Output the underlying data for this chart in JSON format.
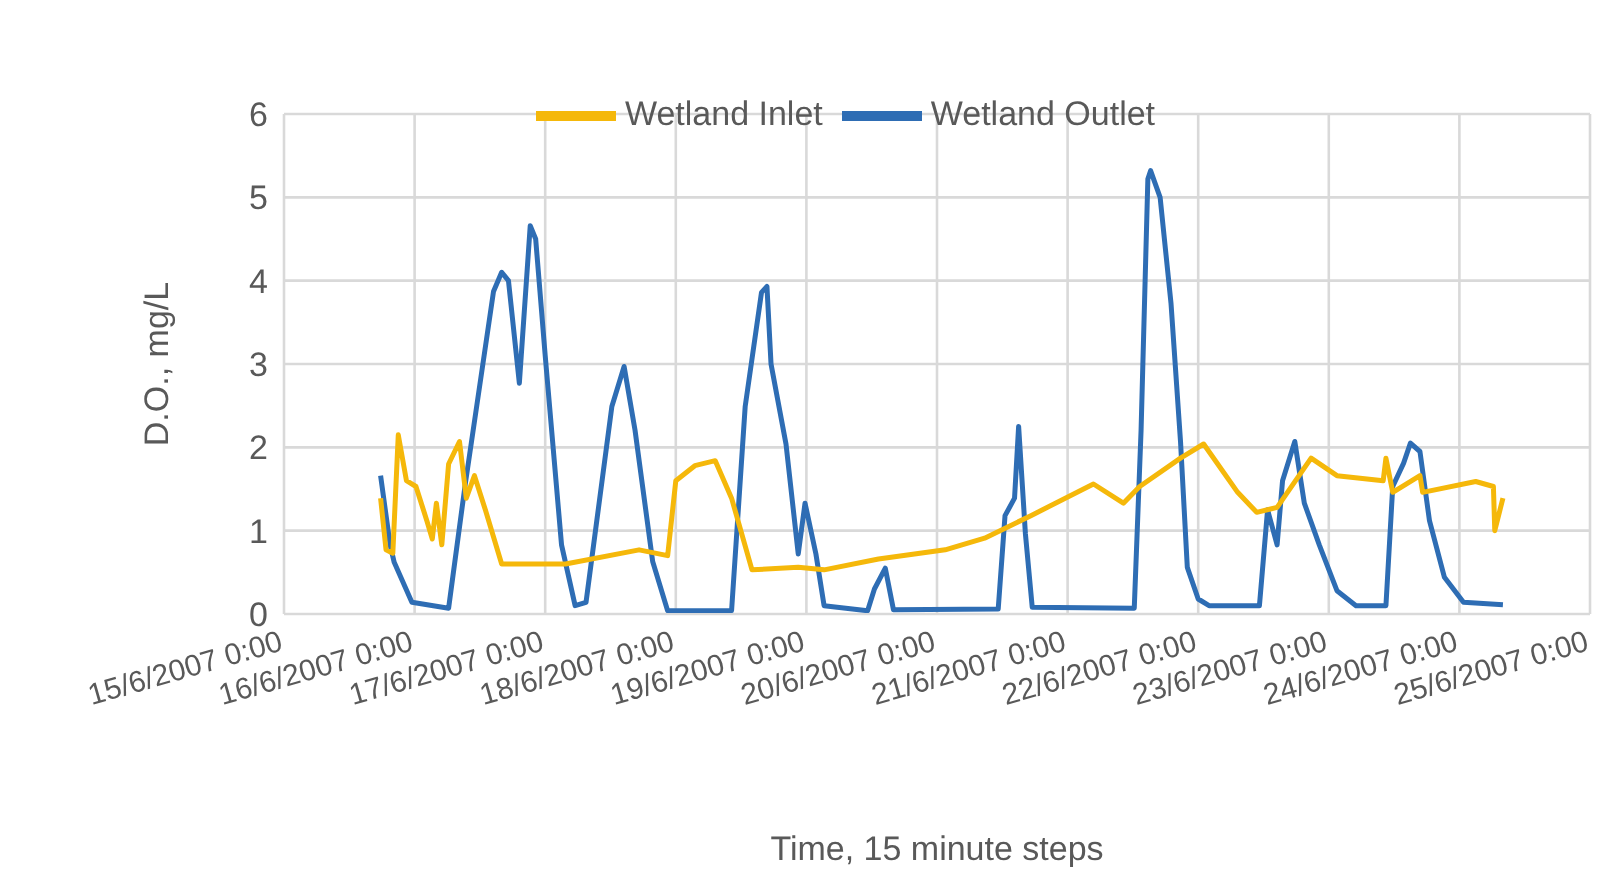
{
  "chart_data": {
    "type": "line",
    "xlabel": "Time, 15 minute steps",
    "ylabel": "D.O., mg/L",
    "xlim": [
      "2007-06-15",
      "2007-06-25"
    ],
    "xticks": [
      {
        "value": "2007-06-15",
        "label": "15/6/2007 0:00"
      },
      {
        "value": "2007-06-16",
        "label": "16/6/2007 0:00"
      },
      {
        "value": "2007-06-17",
        "label": "17/6/2007 0:00"
      },
      {
        "value": "2007-06-18",
        "label": "18/6/2007 0:00"
      },
      {
        "value": "2007-06-19",
        "label": "19/6/2007 0:00"
      },
      {
        "value": "2007-06-20",
        "label": "20/6/2007 0:00"
      },
      {
        "value": "2007-06-21",
        "label": "21/6/2007 0:00"
      },
      {
        "value": "2007-06-22",
        "label": "22/6/2007 0:00"
      },
      {
        "value": "2007-06-23",
        "label": "23/6/2007 0:00"
      },
      {
        "value": "2007-06-24",
        "label": "24/6/2007 0:00"
      },
      {
        "value": "2007-06-25",
        "label": "25/6/2007 0:00"
      }
    ],
    "ylim": [
      0,
      6
    ],
    "yticks": [
      0,
      1,
      2,
      3,
      4,
      5,
      6
    ],
    "grid": true,
    "legend": "top",
    "marker": "none",
    "line_style": "solid",
    "series": [
      {
        "name": "Wetland Outlet",
        "color": "#2e6db4",
        "x": [
          "2007-06-15T17:45",
          "2007-06-15T19:30",
          "2007-06-15T20:15",
          "2007-06-15T23:30",
          "2007-06-16T06:15",
          "2007-06-16T09:15",
          "2007-06-16T14:30",
          "2007-06-16T16:00",
          "2007-06-16T17:15",
          "2007-06-16T19:15",
          "2007-06-16T21:15",
          "2007-06-16T22:15",
          "2007-06-17T00:00",
          "2007-06-17T03:00",
          "2007-06-17T05:30",
          "2007-06-17T07:30",
          "2007-06-17T12:15",
          "2007-06-17T14:30",
          "2007-06-17T16:30",
          "2007-06-17T19:45",
          "2007-06-17T22:30",
          "2007-06-18T10:15",
          "2007-06-18T12:45",
          "2007-06-18T15:45",
          "2007-06-18T16:45",
          "2007-06-18T17:30",
          "2007-06-18T20:15",
          "2007-06-18T22:30",
          "2007-06-18T23:45",
          "2007-06-19T01:45",
          "2007-06-19T03:15",
          "2007-06-19T11:15",
          "2007-06-19T12:30",
          "2007-06-19T14:30",
          "2007-06-19T16:00",
          "2007-06-20T11:15",
          "2007-06-20T12:30",
          "2007-06-20T14:15",
          "2007-06-20T15:00",
          "2007-06-20T16:15",
          "2007-06-20T17:30",
          "2007-06-21T12:15",
          "2007-06-21T13:30",
          "2007-06-21T14:45",
          "2007-06-21T15:15",
          "2007-06-21T17:00",
          "2007-06-21T19:00",
          "2007-06-21T20:45",
          "2007-06-21T22:00",
          "2007-06-22T00:00",
          "2007-06-22T02:00",
          "2007-06-22T11:15",
          "2007-06-22T12:45",
          "2007-06-22T14:30",
          "2007-06-22T15:30",
          "2007-06-22T17:45",
          "2007-06-22T19:30",
          "2007-06-22T22:15",
          "2007-06-23T01:30",
          "2007-06-23T05:00",
          "2007-06-23T10:30",
          "2007-06-23T11:45",
          "2007-06-23T13:45",
          "2007-06-23T15:00",
          "2007-06-23T16:45",
          "2007-06-23T18:30",
          "2007-06-23T21:15",
          "2007-06-24T00:45",
          "2007-06-24T08:00"
        ],
        "values": [
          1.66,
          0.83,
          0.62,
          0.14,
          0.07,
          1.53,
          3.87,
          4.1,
          4.0,
          2.77,
          4.66,
          4.5,
          3.1,
          0.83,
          0.1,
          0.14,
          2.49,
          2.97,
          2.21,
          0.63,
          0.04,
          0.04,
          2.49,
          3.86,
          3.93,
          3.0,
          2.04,
          0.72,
          1.33,
          0.72,
          0.1,
          0.04,
          0.3,
          0.55,
          0.05,
          0.06,
          1.18,
          1.39,
          2.25,
          0.96,
          0.08,
          0.07,
          2.2,
          5.22,
          5.32,
          5.0,
          3.73,
          2.07,
          0.56,
          0.18,
          0.1,
          0.1,
          1.25,
          0.83,
          1.6,
          2.07,
          1.33,
          0.83,
          0.28,
          0.1,
          0.1,
          1.53,
          1.81,
          2.05,
          1.95,
          1.12,
          0.44,
          0.14,
          0.11
        ]
      },
      {
        "name": "Wetland Inlet",
        "color": "#f5b80a",
        "x": [
          "2007-06-15T17:45",
          "2007-06-15T18:45",
          "2007-06-15T20:00",
          "2007-06-15T21:00",
          "2007-06-15T22:30",
          "2007-06-16T00:15",
          "2007-06-16T02:15",
          "2007-06-16T03:15",
          "2007-06-16T04:00",
          "2007-06-16T05:00",
          "2007-06-16T06:15",
          "2007-06-16T08:15",
          "2007-06-16T09:30",
          "2007-06-16T11:00",
          "2007-06-16T13:00",
          "2007-06-16T16:00",
          "2007-06-17T03:45",
          "2007-06-17T17:15",
          "2007-06-17T22:30",
          "2007-06-18T00:00",
          "2007-06-18T03:30",
          "2007-06-18T07:15",
          "2007-06-18T10:15",
          "2007-06-18T14:00",
          "2007-06-18T22:30",
          "2007-06-19T03:15",
          "2007-06-19T13:15",
          "2007-06-20T01:30",
          "2007-06-20T08:45",
          "2007-06-20T17:15",
          "2007-06-21T04:45",
          "2007-06-21T10:15",
          "2007-06-21T13:15",
          "2007-06-21T20:45",
          "2007-06-22T01:00",
          "2007-06-22T07:15",
          "2007-06-22T10:45",
          "2007-06-22T14:30",
          "2007-06-22T20:45",
          "2007-06-23T01:30",
          "2007-06-23T10:00",
          "2007-06-23T10:30",
          "2007-06-23T11:45",
          "2007-06-23T16:45",
          "2007-06-23T17:15",
          "2007-06-24T03:00",
          "2007-06-24T06:15",
          "2007-06-24T06:30",
          "2007-06-24T08:00"
        ],
        "values": [
          1.39,
          0.77,
          0.73,
          2.15,
          1.6,
          1.53,
          1.12,
          0.9,
          1.33,
          0.83,
          1.8,
          2.07,
          1.39,
          1.66,
          1.25,
          0.6,
          0.6,
          0.77,
          0.7,
          1.6,
          1.78,
          1.84,
          1.39,
          0.53,
          0.56,
          0.53,
          0.66,
          0.77,
          0.91,
          1.18,
          1.56,
          1.33,
          1.53,
          1.87,
          2.04,
          1.46,
          1.22,
          1.28,
          1.87,
          1.66,
          1.6,
          1.87,
          1.46,
          1.66,
          1.46,
          1.59,
          1.53,
          1.0,
          1.39
        ]
      }
    ]
  }
}
